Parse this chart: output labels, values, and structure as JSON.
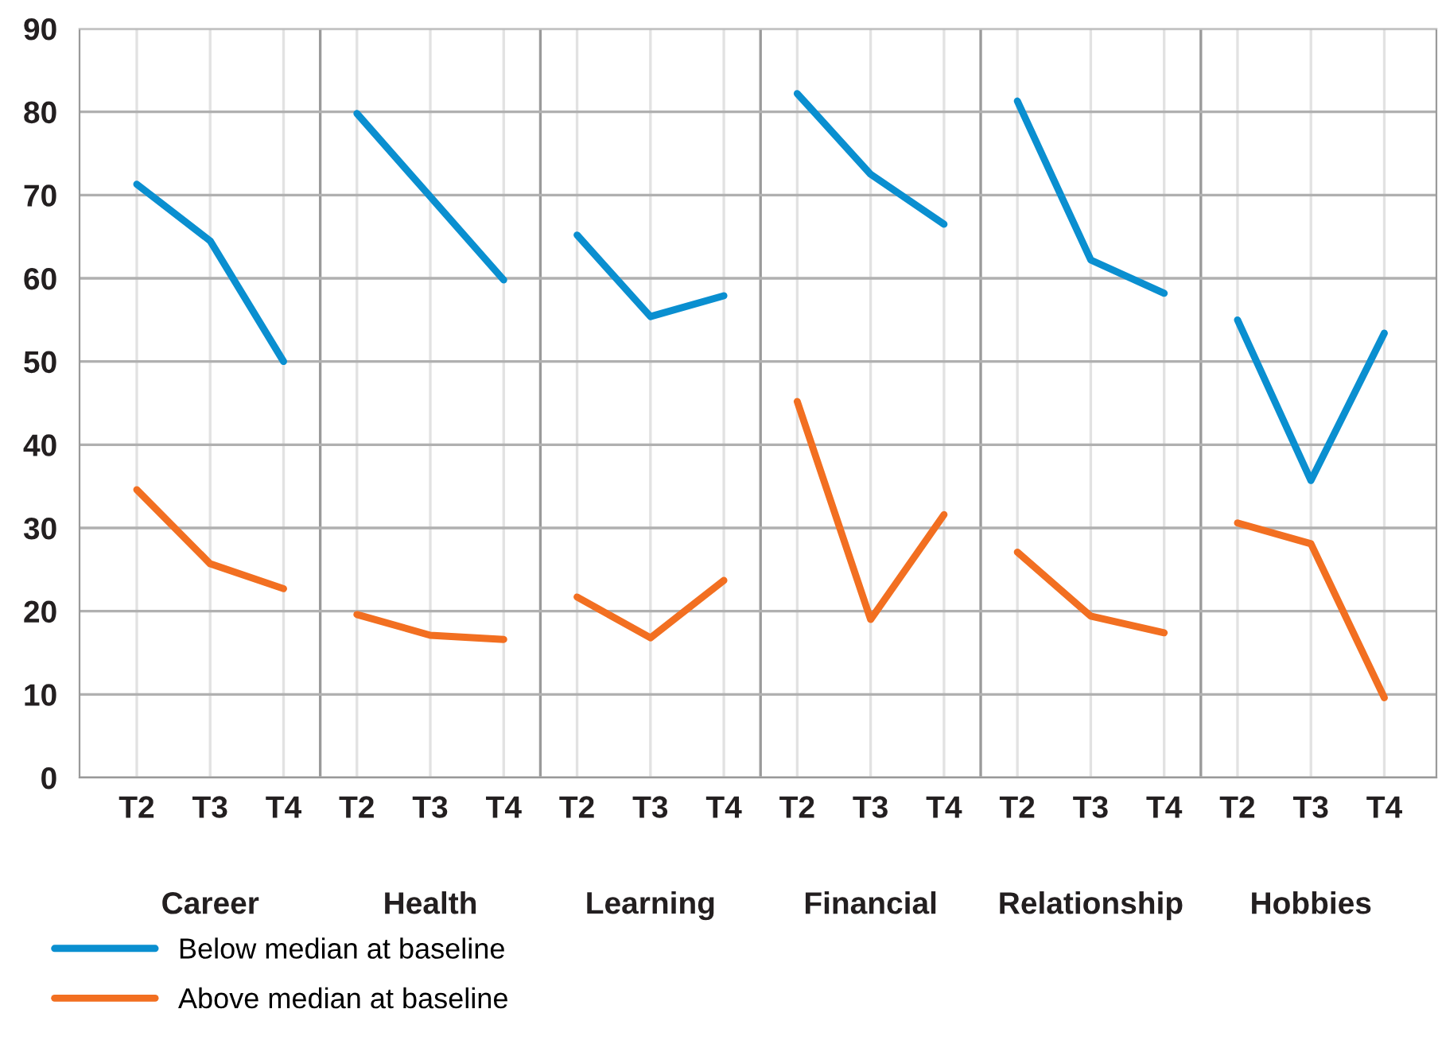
{
  "chart_data": {
    "type": "line",
    "categories": [
      "T2",
      "T3",
      "T4",
      "T2",
      "T3",
      "T4",
      "T2",
      "T3",
      "T4",
      "T2",
      "T3",
      "T4",
      "T2",
      "T3",
      "T4",
      "T2",
      "T3",
      "T4"
    ],
    "ylim": [
      0,
      90
    ],
    "yticks": [
      0,
      10,
      20,
      30,
      40,
      50,
      60,
      70,
      80,
      90
    ],
    "grid": true,
    "legend": "bottom",
    "annotations": [
      "Career",
      "Health",
      "Learning",
      "Financial",
      "Relationship",
      "Hobbies"
    ],
    "series": [
      {
        "name": "Below median at baseline",
        "color": "#0a8fd0",
        "values": [
          71.3,
          64.5,
          50,
          null,
          null,
          null,
          null,
          null,
          null,
          null,
          null,
          null,
          null,
          null,
          null,
          null,
          null,
          null
        ]
      },
      {
        "name": "Above median at baseline",
        "color": "#f26f21",
        "values": [
          34.6,
          25.7,
          22.7,
          null,
          null,
          null,
          null,
          null,
          null,
          null,
          null,
          null,
          null,
          null,
          null,
          null,
          null,
          null
        ]
      },
      {
        "color": "#0a8fd0",
        "values": [
          null,
          null,
          null,
          79.8,
          69.8,
          59.8,
          null,
          null,
          null,
          null,
          null,
          null,
          null,
          null,
          null,
          null,
          null,
          null
        ]
      },
      {
        "color": "#f26f21",
        "values": [
          null,
          null,
          null,
          19.6,
          17.1,
          16.6,
          null,
          null,
          null,
          null,
          null,
          null,
          null,
          null,
          null,
          null,
          null,
          null
        ]
      },
      {
        "color": "#0a8fd0",
        "values": [
          null,
          null,
          null,
          null,
          null,
          null,
          65.2,
          55.4,
          57.9,
          null,
          null,
          null,
          null,
          null,
          null,
          null,
          null,
          null
        ]
      },
      {
        "color": "#f26f21",
        "values": [
          null,
          null,
          null,
          null,
          null,
          null,
          21.7,
          16.8,
          23.7,
          null,
          null,
          null,
          null,
          null,
          null,
          null,
          null,
          null
        ]
      },
      {
        "color": "#0a8fd0",
        "values": [
          null,
          null,
          null,
          null,
          null,
          null,
          null,
          null,
          null,
          82.2,
          72.5,
          66.5,
          null,
          null,
          null,
          null,
          null,
          null
        ]
      },
      {
        "color": "#f26f21",
        "values": [
          null,
          null,
          null,
          null,
          null,
          null,
          null,
          null,
          null,
          45.2,
          19,
          31.6,
          null,
          null,
          null,
          null,
          null,
          null
        ]
      },
      {
        "color": "#0a8fd0",
        "values": [
          null,
          null,
          null,
          null,
          null,
          null,
          null,
          null,
          null,
          null,
          null,
          null,
          81.3,
          62.2,
          58.2,
          null,
          null,
          null
        ]
      },
      {
        "color": "#f26f21",
        "values": [
          null,
          null,
          null,
          null,
          null,
          null,
          null,
          null,
          null,
          null,
          null,
          null,
          27.1,
          19.4,
          17.4,
          null,
          null,
          null
        ]
      },
      {
        "color": "#0a8fd0",
        "values": [
          null,
          null,
          null,
          null,
          null,
          null,
          null,
          null,
          null,
          null,
          null,
          null,
          null,
          null,
          null,
          55,
          35.7,
          53.4
        ]
      },
      {
        "color": "#f26f21",
        "values": [
          null,
          null,
          null,
          null,
          null,
          null,
          null,
          null,
          null,
          null,
          null,
          null,
          null,
          null,
          null,
          30.6,
          28.1,
          9.6
        ]
      }
    ]
  }
}
